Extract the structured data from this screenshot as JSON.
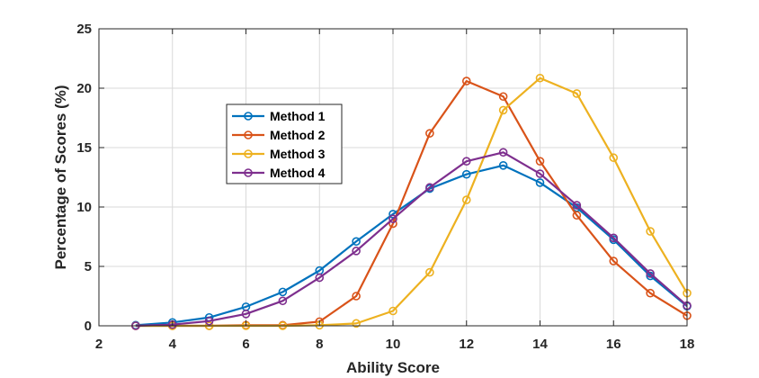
{
  "chart_data": {
    "type": "line",
    "title": "",
    "xlabel": "Ability Score",
    "ylabel": "Percentage of Scores (%)",
    "xlim": [
      2,
      18
    ],
    "ylim": [
      0,
      25
    ],
    "xticks": [
      2,
      4,
      6,
      8,
      10,
      12,
      14,
      16,
      18
    ],
    "yticks": [
      0,
      5,
      10,
      15,
      20,
      25
    ],
    "grid": true,
    "legend_position": "upper-left-inside",
    "x": [
      3,
      4,
      5,
      6,
      7,
      8,
      9,
      10,
      11,
      12,
      13,
      14,
      15,
      16,
      17,
      18
    ],
    "series": [
      {
        "name": "Method 1",
        "color": "#0072BD",
        "values": [
          0.05,
          0.28,
          0.7,
          1.6,
          2.85,
          4.65,
          7.1,
          9.4,
          11.55,
          12.75,
          13.5,
          12.05,
          9.95,
          7.25,
          4.2,
          1.65
        ]
      },
      {
        "name": "Method 2",
        "color": "#D95319",
        "values": [
          0.0,
          0.0,
          0.0,
          0.05,
          0.05,
          0.35,
          2.5,
          8.6,
          16.2,
          20.6,
          19.3,
          13.85,
          9.3,
          5.45,
          2.75,
          0.85
        ]
      },
      {
        "name": "Method 3",
        "color": "#EDB120",
        "values": [
          0.0,
          0.0,
          0.0,
          0.0,
          0.0,
          0.05,
          0.2,
          1.25,
          4.5,
          10.6,
          18.15,
          20.85,
          19.55,
          14.15,
          7.95,
          2.75
        ]
      },
      {
        "name": "Method 4",
        "color": "#7E2F8E",
        "values": [
          0.0,
          0.1,
          0.4,
          1.0,
          2.1,
          4.05,
          6.3,
          9.0,
          11.65,
          13.85,
          14.6,
          12.8,
          10.15,
          7.4,
          4.4,
          1.7
        ]
      }
    ]
  }
}
